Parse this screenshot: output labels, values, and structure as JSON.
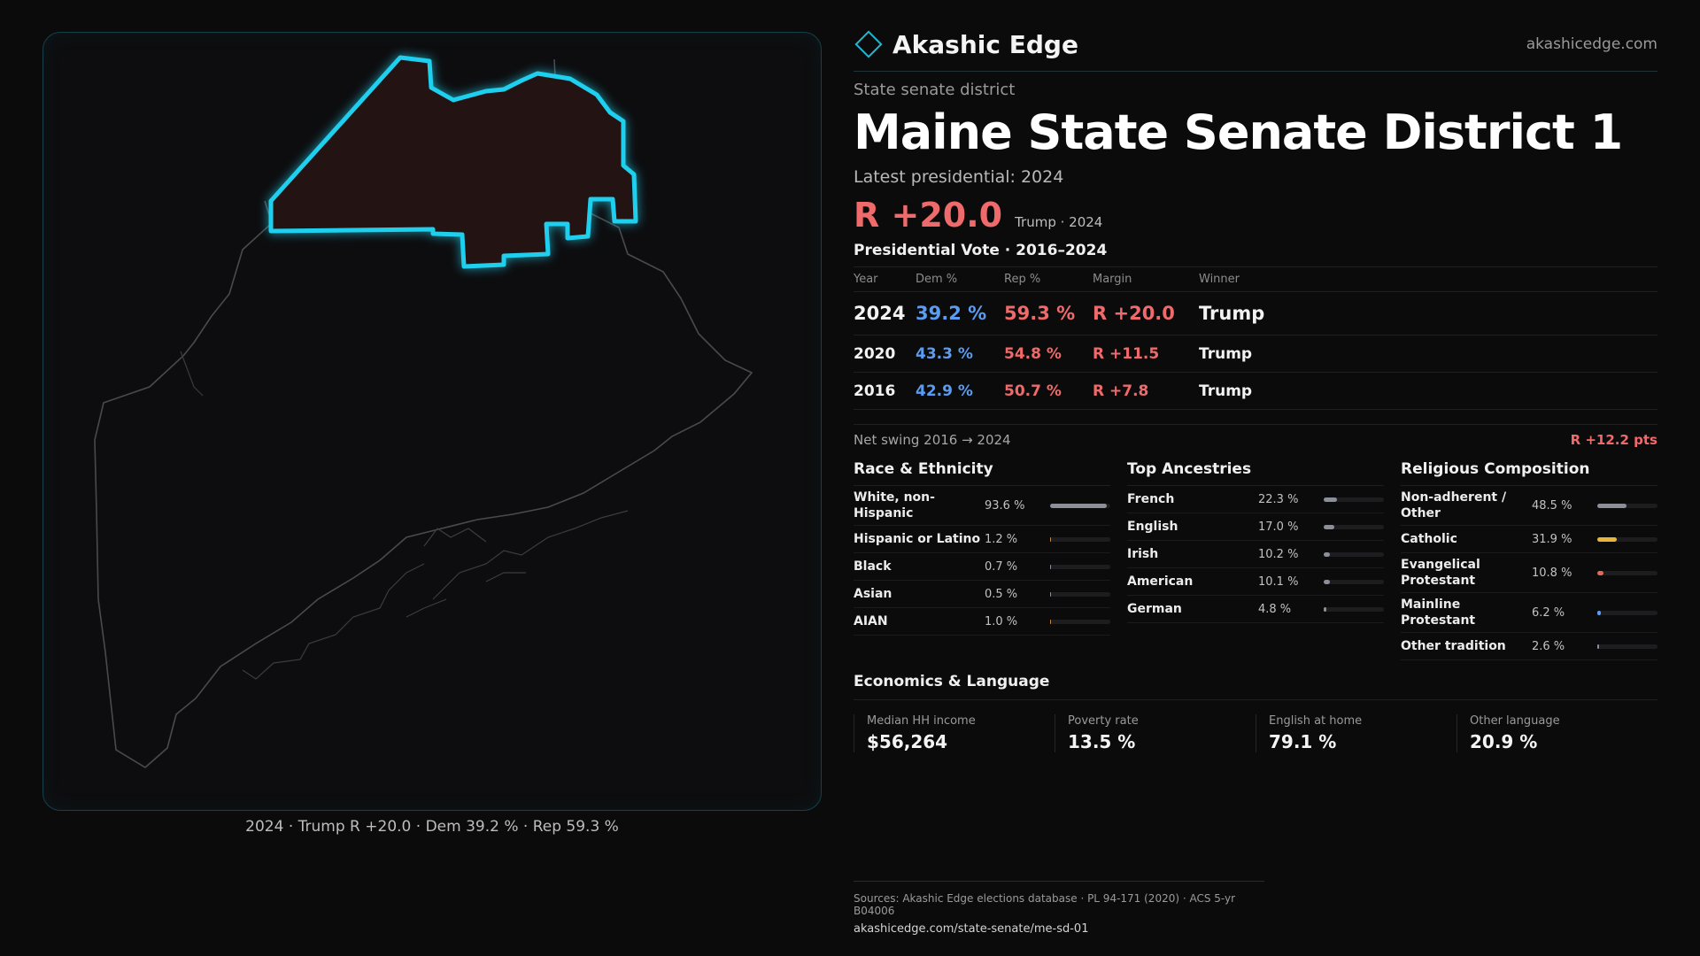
{
  "brand": {
    "name": "Akashic Edge",
    "domain": "akashicedge.com"
  },
  "header": {
    "kicker": "State senate district",
    "title": "Maine State Senate District 1",
    "latest": "Latest presidential: 2024",
    "margin": "R +20.0",
    "margin_sub": "Trump · 2024"
  },
  "votes": {
    "heading": "Presidential Vote · 2016–2024",
    "columns": [
      "Year",
      "Dem %",
      "Rep %",
      "Margin",
      "Winner"
    ],
    "rows": [
      {
        "year": "2024",
        "dem": "39.2 %",
        "rep": "59.3 %",
        "margin": "R +20.0",
        "winner": "Trump"
      },
      {
        "year": "2020",
        "dem": "43.3 %",
        "rep": "54.8 %",
        "margin": "R +11.5",
        "winner": "Trump"
      },
      {
        "year": "2016",
        "dem": "42.9 %",
        "rep": "50.7 %",
        "margin": "R +7.8",
        "winner": "Trump"
      }
    ],
    "swing_label": "Net swing 2016 → 2024",
    "swing_value": "R +12.2 pts"
  },
  "race": {
    "title": "Race & Ethnicity",
    "items": [
      {
        "label": "White, non-Hispanic",
        "value": "93.6 %",
        "pct": 93.6,
        "color": "#8a8f99"
      },
      {
        "label": "Hispanic or Latino",
        "value": "1.2 %",
        "pct": 1.2,
        "color": "#c9863a"
      },
      {
        "label": "Black",
        "value": "0.7 %",
        "pct": 0.7,
        "color": "#8a8f99"
      },
      {
        "label": "Asian",
        "value": "0.5 %",
        "pct": 0.5,
        "color": "#8a8f99"
      },
      {
        "label": "AIAN",
        "value": "1.0 %",
        "pct": 1.0,
        "color": "#c9863a"
      }
    ]
  },
  "ancestry": {
    "title": "Top Ancestries",
    "items": [
      {
        "label": "French",
        "value": "22.3 %",
        "pct": 22.3,
        "color": "#8a8f99"
      },
      {
        "label": "English",
        "value": "17.0 %",
        "pct": 17.0,
        "color": "#8a8f99"
      },
      {
        "label": "Irish",
        "value": "10.2 %",
        "pct": 10.2,
        "color": "#8a8f99"
      },
      {
        "label": "American",
        "value": "10.1 %",
        "pct": 10.1,
        "color": "#8a8f99"
      },
      {
        "label": "German",
        "value": "4.8 %",
        "pct": 4.8,
        "color": "#8a8f99"
      }
    ]
  },
  "religion": {
    "title": "Religious Composition",
    "items": [
      {
        "label": "Non-adherent / Other",
        "value": "48.5 %",
        "pct": 48.5,
        "color": "#8a8f99"
      },
      {
        "label": "Catholic",
        "value": "31.9 %",
        "pct": 31.9,
        "color": "#e8b53a"
      },
      {
        "label": "Evangelical Protestant",
        "value": "10.8 %",
        "pct": 10.8,
        "color": "#e06a5a"
      },
      {
        "label": "Mainline Protestant",
        "value": "6.2 %",
        "pct": 6.2,
        "color": "#5b9cf0"
      },
      {
        "label": "Other tradition",
        "value": "2.6 %",
        "pct": 2.6,
        "color": "#8a8f99"
      }
    ]
  },
  "economics": {
    "title": "Economics & Language",
    "cells": [
      {
        "label": "Median HH income",
        "value": "$56,264"
      },
      {
        "label": "Poverty rate",
        "value": "13.5 %"
      },
      {
        "label": "English at home",
        "value": "79.1 %"
      },
      {
        "label": "Other language",
        "value": "20.9 %"
      }
    ]
  },
  "map": {
    "caption": "2024 · Trump R +20.0 · Dem 39.2 % · Rep 59.3 %",
    "outline_color": "#4a4a4e",
    "district_stroke": "#1fd0ee",
    "district_fill": "#241313"
  },
  "footer": {
    "sources": "Sources: Akashic Edge elections database · PL 94-171 (2020) · ACS 5-yr B04006",
    "url": "akashicedge.com/state-senate/me-sd-01"
  }
}
